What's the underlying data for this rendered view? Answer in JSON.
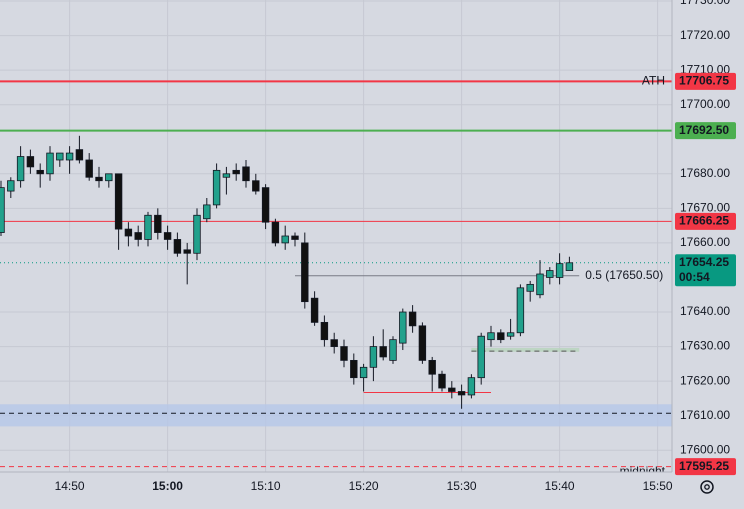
{
  "chart_data": {
    "type": "candlestick",
    "categories": [
      "14:43",
      "14:44",
      "14:45",
      "14:46",
      "14:47",
      "14:48",
      "14:49",
      "14:50",
      "14:51",
      "14:52",
      "14:53",
      "14:54",
      "14:55",
      "14:56",
      "14:57",
      "14:58",
      "14:59",
      "15:00",
      "15:01",
      "15:02",
      "15:03",
      "15:04",
      "15:05",
      "15:06",
      "15:07",
      "15:08",
      "15:09",
      "15:10",
      "15:11",
      "15:12",
      "15:13",
      "15:14",
      "15:15",
      "15:16",
      "15:17",
      "15:18",
      "15:19",
      "15:20",
      "15:21",
      "15:22",
      "15:23",
      "15:24",
      "15:25",
      "15:26",
      "15:27",
      "15:28",
      "15:29",
      "15:30",
      "15:31",
      "15:32",
      "15:33",
      "15:34",
      "15:35",
      "15:36",
      "15:37",
      "15:38",
      "15:39",
      "15:40",
      "15:41"
    ],
    "open": [
      17663,
      17675,
      17678,
      17685,
      17681,
      17680,
      17684,
      17684,
      17687,
      17684,
      17679,
      17678,
      17680,
      17664,
      17663,
      17661,
      17668,
      17663,
      17661,
      17658,
      17657,
      17667,
      17671,
      17679,
      17681,
      17682,
      17678,
      17676,
      17666,
      17660,
      17662,
      17660,
      17644,
      17637,
      17632,
      17630,
      17626,
      17621,
      17624,
      17630,
      17626,
      17631,
      17640,
      17636,
      17626,
      17622,
      17618,
      17617,
      17616,
      17621,
      17632,
      17634,
      17633,
      17634,
      17646,
      17645,
      17650,
      17650,
      17652
    ],
    "high": [
      17678,
      17679,
      17688,
      17687,
      17683,
      17688,
      17686,
      17688,
      17691,
      17686,
      17682,
      17680,
      17680,
      17666,
      17665,
      17669,
      17670,
      17665,
      17663,
      17660,
      17670,
      17673,
      17683,
      17682,
      17683,
      17684,
      17680,
      17677,
      17667,
      17665,
      17663,
      17663,
      17646,
      17639,
      17634,
      17632,
      17628,
      17625,
      17633,
      17635,
      17633,
      17641,
      17642,
      17637,
      17627,
      17623,
      17620,
      17619,
      17622,
      17634,
      17636,
      17635,
      17638,
      17648,
      17649,
      17655,
      17653,
      17657,
      17656
    ],
    "low": [
      17662,
      17673,
      17676,
      17680,
      17676,
      17678,
      17682,
      17680,
      17683,
      17678,
      17676,
      17676,
      17658,
      17659,
      17659,
      17659,
      17661,
      17658,
      17656,
      17648,
      17655,
      17666,
      17670,
      17674,
      17678,
      17676,
      17674,
      17664,
      17659,
      17658,
      17659,
      17641,
      17636,
      17630,
      17628,
      17624,
      17619,
      17617,
      17620,
      17626,
      17625,
      17629,
      17634,
      17625,
      17617,
      17617,
      17615,
      17612,
      17615,
      17619,
      17630,
      17631,
      17632,
      17633,
      17643,
      17644,
      17648,
      17648,
      17652
    ],
    "close": [
      17676,
      17678,
      17685,
      17682,
      17680,
      17686,
      17686,
      17686,
      17684,
      17679,
      17678,
      17680,
      17664,
      17662,
      17661,
      17668,
      17663,
      17661,
      17657,
      17657,
      17668,
      17671,
      17681,
      17680,
      17680,
      17678,
      17675,
      17666,
      17660,
      17662,
      17661,
      17643,
      17637,
      17632,
      17630,
      17626,
      17621,
      17624,
      17630,
      17627,
      17632,
      17640,
      17636,
      17626,
      17622,
      17618,
      17617,
      17616,
      17621,
      17633,
      17634,
      17632,
      17634,
      17647,
      17648,
      17651,
      17652,
      17654,
      17654.25
    ],
    "up_color": "#22a18c",
    "down_color": "#111111",
    "xlim": [
      "14:43",
      "15:51"
    ],
    "xticks": [
      "14:50",
      "15:00",
      "15:10",
      "15:20",
      "15:30",
      "15:40",
      "15:50"
    ],
    "ylim": [
      17593.7,
      17730.3
    ],
    "yticks": [
      {
        "value": 17730,
        "label": "17730.00"
      },
      {
        "value": 17720,
        "label": "17720.00"
      },
      {
        "value": 17710,
        "label": "17710.00"
      },
      {
        "value": 17700,
        "label": "17700.00"
      },
      {
        "value": 17680,
        "label": "17680.00"
      },
      {
        "value": 17670,
        "label": "17670.00"
      },
      {
        "value": 17660,
        "label": "17660.00"
      },
      {
        "value": 17640,
        "label": "17640.00"
      },
      {
        "value": 17630,
        "label": "17630.00"
      },
      {
        "value": 17620,
        "label": "17620.00"
      },
      {
        "value": 17610,
        "label": "17610.00"
      },
      {
        "value": 17600,
        "label": "17600.00"
      }
    ],
    "grid": true,
    "zones": [
      {
        "from": 17606.9,
        "to": 17613.3,
        "color": "#b7c8e8"
      },
      {
        "from": 17628.5,
        "to": 17629.6,
        "x_from": "15:31",
        "x_to": "15:42",
        "color": "#b9d3bd"
      }
    ],
    "levels": [
      {
        "name": "ATH",
        "value": 17706.75,
        "label": "17706.75",
        "color": "#f23645",
        "width": 2,
        "style": "solid"
      },
      {
        "value": 17692.5,
        "label": "17692.50",
        "color": "#4caf50",
        "width": 2,
        "style": "solid"
      },
      {
        "value": 17666.25,
        "label": "17666.25",
        "color": "#f23645",
        "width": 1,
        "style": "solid"
      },
      {
        "value": 17654.25,
        "label": "17654.25",
        "countdown": "00:54",
        "color": "#089981",
        "width": 1,
        "style": "dotted"
      },
      {
        "name": "0.5 (17650.50)",
        "value": 17650.5,
        "x_from": "15:13",
        "x_to": "15:42",
        "color": "#787b86",
        "width": 1,
        "style": "solid"
      },
      {
        "value": 17628.7,
        "x_from": "15:31",
        "x_to": "15:42",
        "color": "#555555",
        "width": 1,
        "style": "dashed"
      },
      {
        "value": 17616.7,
        "x_from": "15:20",
        "x_to": "15:33",
        "color": "#f23645",
        "width": 1,
        "style": "solid"
      },
      {
        "value": 17610.7,
        "color": "#131722",
        "width": 1,
        "style": "dashed"
      },
      {
        "name": "midnight",
        "value": 17595.25,
        "label": "17595.25",
        "color": "#f23645",
        "width": 1,
        "style": "dashed"
      }
    ]
  }
}
